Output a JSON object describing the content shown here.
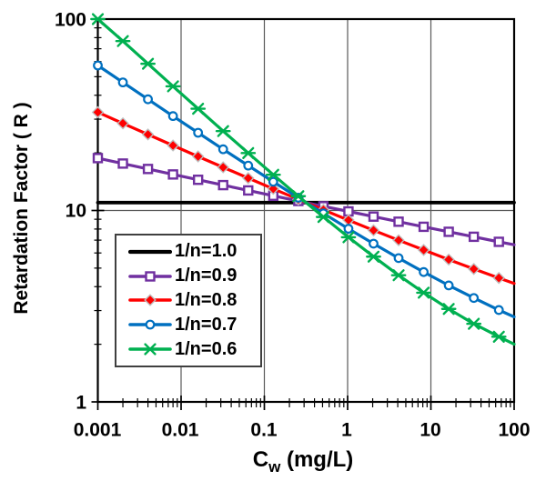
{
  "chart_data": {
    "type": "line",
    "title": "",
    "xlabel": "Cw (mg/L)",
    "xlabel_main": "C",
    "xlabel_sub": "w",
    "xlabel_unit": "(mg/L)",
    "ylabel": "Retardation Factor ( R )",
    "x_scale": "log",
    "y_scale": "log",
    "xlim": [
      0.001,
      100
    ],
    "ylim": [
      1,
      100
    ],
    "x_tick_labels": [
      "0.001",
      "0.01",
      "0.1",
      "1",
      "10",
      "100"
    ],
    "y_tick_labels": [
      "100",
      "10",
      "1"
    ],
    "grid": {
      "vertical_at": [
        0.01,
        0.1,
        1,
        10
      ],
      "horizontal_at": [
        10
      ],
      "color": "#595959"
    },
    "legend_position": "center-left",
    "frame_color": "#000000",
    "x": [
      0.001,
      0.002,
      0.004,
      0.008,
      0.016,
      0.032,
      0.064,
      0.128,
      0.256,
      0.512,
      1.024,
      2.048,
      4.096,
      8.192,
      16.384,
      32.768,
      65.536,
      100
    ],
    "series": [
      {
        "name": "1/n=1.0",
        "color": "#000000",
        "marker": "none",
        "line_width": 3.8,
        "values": [
          11,
          11,
          11,
          11,
          11,
          11,
          11,
          11,
          11,
          11,
          11,
          11,
          11,
          11,
          11,
          11,
          11,
          11
        ]
      },
      {
        "name": "1/n=0.9",
        "color": "#7030A0",
        "marker": "square-open",
        "line_width": 3.2,
        "values": [
          18.78,
          17.59,
          16.48,
          15.43,
          14.47,
          13.57,
          12.73,
          11.94,
          11.21,
          10.52,
          9.89,
          9.29,
          8.74,
          8.22,
          7.74,
          7.29,
          6.86,
          6.62
        ]
      },
      {
        "name": "1/n=0.8",
        "color": "#FF0000",
        "marker": "diamond-filled",
        "marker_stroke": "#BFBFBF",
        "line_width": 3.2,
        "values": [
          32.61,
          28.52,
          24.96,
          21.86,
          19.16,
          16.81,
          14.76,
          12.98,
          11.43,
          10.08,
          8.91,
          7.88,
          6.99,
          6.22,
          5.54,
          4.95,
          4.44,
          4.16
        ]
      },
      {
        "name": "1/n=0.7",
        "color": "#0070C0",
        "marker": "circle-open",
        "line_width": 3.2,
        "values": [
          57.24,
          46.69,
          38.11,
          31.14,
          25.48,
          20.89,
          17.16,
          14.13,
          11.66,
          9.66,
          8.03,
          6.71,
          5.64,
          4.77,
          4.06,
          3.49,
          3.02,
          2.78
        ]
      },
      {
        "name": "1/n=0.6",
        "color": "#00B050",
        "marker": "asterisk",
        "line_width": 3.2,
        "values": [
          100,
          76.78,
          58.43,
          44.54,
          34.01,
          25.99,
          19.96,
          15.37,
          11.88,
          9.25,
          7.25,
          5.74,
          4.59,
          3.72,
          3.06,
          2.56,
          2.19,
          2.0
        ]
      }
    ]
  }
}
